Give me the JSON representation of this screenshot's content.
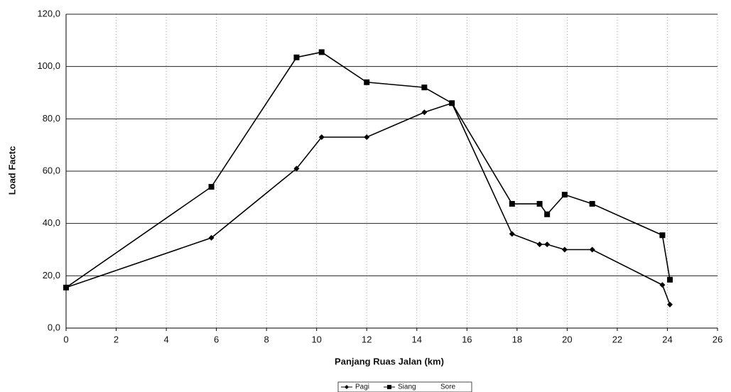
{
  "chart_data": {
    "type": "line",
    "x_label": "Panjang Ruas Jalan (km)",
    "y_label": "Load Factc",
    "x": [
      0,
      5.8,
      9.2,
      10.2,
      12.0,
      14.3,
      15.4,
      17.8,
      18.9,
      19.2,
      19.9,
      21.0,
      23.8,
      24.1
    ],
    "series": [
      {
        "name": "Pagi",
        "color": "#000000",
        "marker": "diamond",
        "values": [
          15.5,
          34.5,
          61,
          73,
          73,
          82.5,
          86,
          36,
          32,
          32,
          30,
          30,
          16.5,
          9
        ]
      },
      {
        "name": "Siang",
        "color": "#000000",
        "marker": "square",
        "values": [
          15.5,
          54,
          103.5,
          105.5,
          94,
          92,
          86,
          47.5,
          47.5,
          43.5,
          51,
          47.5,
          35.5,
          18.5
        ]
      },
      {
        "name": "Sore",
        "color": "#000000",
        "marker": "none",
        "values": [
          null,
          null,
          null,
          null,
          null,
          null,
          null,
          null,
          null,
          null,
          null,
          null,
          null,
          null
        ]
      }
    ],
    "xlim": [
      0,
      26
    ],
    "xticks": [
      0,
      2,
      4,
      6,
      8,
      10,
      12,
      14,
      16,
      18,
      20,
      22,
      24,
      26
    ],
    "ylim": [
      0,
      120
    ],
    "yticks": [
      {
        "value": 0,
        "label": "0,0"
      },
      {
        "value": 20,
        "label": "20,0"
      },
      {
        "value": 40,
        "label": "40,0"
      },
      {
        "value": 60,
        "label": "60,0"
      },
      {
        "value": 80,
        "label": "80,0"
      },
      {
        "value": 100,
        "label": "100,0"
      },
      {
        "value": 120,
        "label": "120,0"
      }
    ],
    "grid": true,
    "legend": "bottom"
  }
}
